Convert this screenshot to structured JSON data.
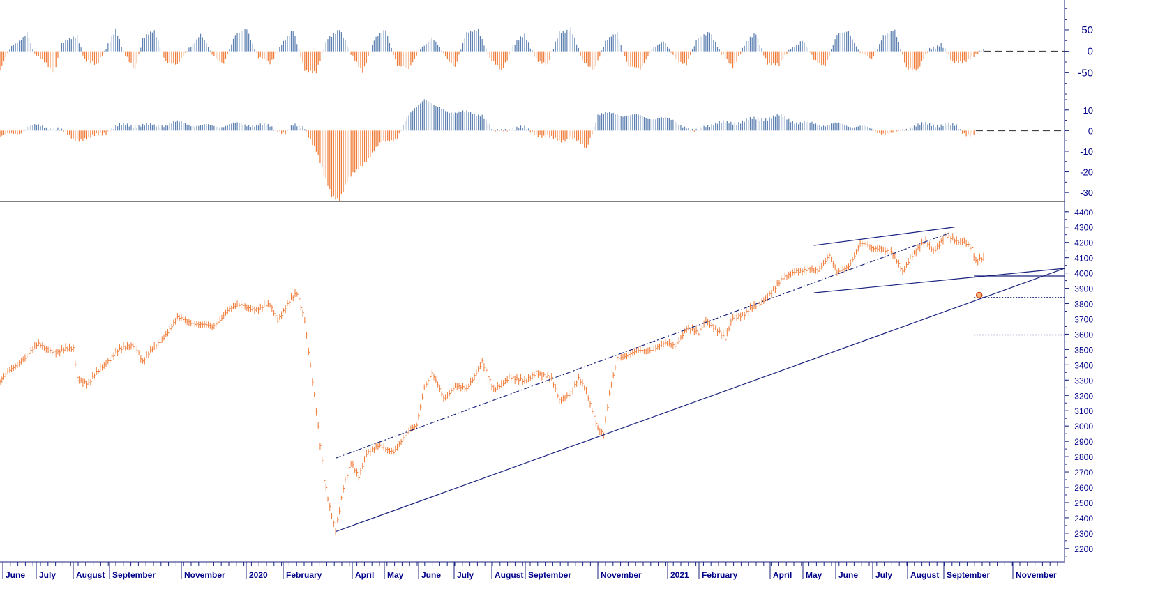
{
  "colors": {
    "up": "#5b7fb0",
    "down": "#f07a36",
    "line": "#1a237e",
    "axis": "#1a237e",
    "label": "#00008b",
    "panel_divider": "#000000",
    "marker_fill": "#f5b27a",
    "marker_stroke": "#d04010"
  },
  "chart_data": [
    {
      "type": "bar",
      "panel": "oscillator-top",
      "ylim": [
        -100,
        120
      ],
      "ticks": [
        50,
        0,
        -50
      ],
      "tick_labels": [
        "50",
        "0",
        "-50"
      ],
      "baseline": 0,
      "anchors": [
        [
          0,
          -45
        ],
        [
          6,
          10
        ],
        [
          14,
          45
        ],
        [
          18,
          -10
        ],
        [
          24,
          -25
        ],
        [
          28,
          -50
        ],
        [
          32,
          15
        ],
        [
          40,
          40
        ],
        [
          44,
          -20
        ],
        [
          50,
          -35
        ],
        [
          56,
          20
        ],
        [
          60,
          50
        ],
        [
          64,
          -5
        ],
        [
          70,
          -40
        ],
        [
          74,
          30
        ],
        [
          80,
          45
        ],
        [
          86,
          -20
        ],
        [
          92,
          -35
        ],
        [
          98,
          10
        ],
        [
          104,
          40
        ],
        [
          110,
          -10
        ],
        [
          116,
          -25
        ],
        [
          122,
          35
        ],
        [
          128,
          55
        ],
        [
          134,
          -15
        ],
        [
          140,
          -30
        ],
        [
          146,
          20
        ],
        [
          152,
          45
        ],
        [
          158,
          -40
        ],
        [
          164,
          -50
        ],
        [
          170,
          30
        ],
        [
          176,
          55
        ],
        [
          182,
          -10
        ],
        [
          188,
          -45
        ],
        [
          194,
          25
        ],
        [
          200,
          50
        ],
        [
          206,
          -30
        ],
        [
          212,
          -45
        ],
        [
          218,
          10
        ],
        [
          224,
          30
        ],
        [
          230,
          -5
        ],
        [
          236,
          -35
        ],
        [
          242,
          40
        ],
        [
          248,
          55
        ],
        [
          254,
          -20
        ],
        [
          260,
          -45
        ],
        [
          266,
          15
        ],
        [
          272,
          35
        ],
        [
          278,
          -15
        ],
        [
          284,
          -35
        ],
        [
          290,
          45
        ],
        [
          296,
          55
        ],
        [
          302,
          -25
        ],
        [
          308,
          -40
        ],
        [
          314,
          20
        ],
        [
          320,
          45
        ],
        [
          326,
          -35
        ],
        [
          332,
          -45
        ],
        [
          338,
          10
        ],
        [
          344,
          20
        ],
        [
          350,
          -15
        ],
        [
          356,
          -30
        ],
        [
          362,
          30
        ],
        [
          368,
          50
        ],
        [
          374,
          -10
        ],
        [
          380,
          -35
        ],
        [
          386,
          15
        ],
        [
          392,
          40
        ],
        [
          398,
          -25
        ],
        [
          404,
          -35
        ],
        [
          410,
          10
        ],
        [
          416,
          25
        ],
        [
          422,
          -20
        ],
        [
          428,
          -30
        ],
        [
          434,
          35
        ],
        [
          440,
          50
        ],
        [
          446,
          -5
        ],
        [
          452,
          -20
        ],
        [
          458,
          40
        ],
        [
          464,
          45
        ],
        [
          470,
          -35
        ],
        [
          476,
          -45
        ],
        [
          482,
          5
        ],
        [
          488,
          20
        ],
        [
          494,
          -30
        ],
        [
          500,
          -20
        ],
        [
          506,
          -10
        ],
        [
          510,
          0
        ]
      ]
    },
    {
      "type": "bar",
      "panel": "oscillator-middle",
      "ylim": [
        -33,
        16
      ],
      "ticks": [
        10,
        0,
        -10,
        -20,
        -30
      ],
      "tick_labels": [
        "10",
        "0",
        "-10",
        "-20",
        "-30"
      ],
      "baseline": 0,
      "anchors": [
        [
          0,
          -3
        ],
        [
          10,
          -1
        ],
        [
          14,
          2
        ],
        [
          22,
          2
        ],
        [
          30,
          1
        ],
        [
          38,
          -4
        ],
        [
          46,
          -4
        ],
        [
          54,
          -1
        ],
        [
          60,
          2
        ],
        [
          72,
          3
        ],
        [
          80,
          2
        ],
        [
          90,
          4
        ],
        [
          100,
          3
        ],
        [
          110,
          2
        ],
        [
          120,
          3
        ],
        [
          130,
          3
        ],
        [
          140,
          2
        ],
        [
          148,
          -1
        ],
        [
          152,
          2
        ],
        [
          158,
          2
        ],
        [
          164,
          -10
        ],
        [
          168,
          -22
        ],
        [
          172,
          -31
        ],
        [
          176,
          -33
        ],
        [
          180,
          -25
        ],
        [
          186,
          -18
        ],
        [
          192,
          -12
        ],
        [
          198,
          -6
        ],
        [
          206,
          -3
        ],
        [
          210,
          4
        ],
        [
          216,
          12
        ],
        [
          220,
          16
        ],
        [
          226,
          11
        ],
        [
          236,
          9
        ],
        [
          250,
          8
        ],
        [
          256,
          -1
        ],
        [
          262,
          1
        ],
        [
          272,
          1
        ],
        [
          282,
          -3
        ],
        [
          290,
          -5
        ],
        [
          296,
          -3
        ],
        [
          304,
          -9
        ],
        [
          310,
          8
        ],
        [
          320,
          8
        ],
        [
          330,
          7
        ],
        [
          340,
          6
        ],
        [
          350,
          5
        ],
        [
          360,
          -1
        ],
        [
          366,
          3
        ],
        [
          380,
          4
        ],
        [
          396,
          6
        ],
        [
          404,
          7
        ],
        [
          414,
          4
        ],
        [
          424,
          3
        ],
        [
          436,
          3
        ],
        [
          446,
          2
        ],
        [
          454,
          0
        ],
        [
          462,
          -2
        ],
        [
          472,
          2
        ],
        [
          480,
          3
        ],
        [
          490,
          3
        ],
        [
          496,
          2
        ],
        [
          500,
          -1
        ],
        [
          504,
          -2
        ],
        [
          506,
          -1
        ]
      ]
    },
    {
      "type": "line",
      "panel": "price",
      "ylim": [
        2140,
        4440
      ],
      "ticks": [
        4400,
        4300,
        4200,
        4100,
        4000,
        3900,
        3800,
        3700,
        3600,
        3500,
        3400,
        3300,
        3200,
        3100,
        3000,
        2900,
        2800,
        2700,
        2600,
        2500,
        2400,
        2300,
        2200
      ],
      "tick_labels": [
        "4400",
        "4300",
        "4200",
        "4100",
        "4000",
        "3900",
        "3800",
        "3700",
        "3600",
        "3500",
        "3400",
        "3300",
        "3200",
        "3100",
        "3000",
        "2900",
        "2800",
        "2700",
        "2600",
        "2500",
        "2400",
        "2300",
        "2200"
      ],
      "anchors": [
        [
          0,
          3290
        ],
        [
          10,
          3420
        ],
        [
          20,
          3530
        ],
        [
          30,
          3480
        ],
        [
          38,
          3510
        ],
        [
          40,
          3320
        ],
        [
          46,
          3270
        ],
        [
          52,
          3380
        ],
        [
          60,
          3480
        ],
        [
          70,
          3540
        ],
        [
          74,
          3420
        ],
        [
          80,
          3510
        ],
        [
          92,
          3700
        ],
        [
          100,
          3680
        ],
        [
          110,
          3640
        ],
        [
          118,
          3760
        ],
        [
          126,
          3790
        ],
        [
          134,
          3760
        ],
        [
          140,
          3790
        ],
        [
          144,
          3700
        ],
        [
          150,
          3810
        ],
        [
          154,
          3860
        ],
        [
          158,
          3700
        ],
        [
          160,
          3500
        ],
        [
          164,
          3100
        ],
        [
          168,
          2640
        ],
        [
          171,
          2470
        ],
        [
          174,
          2320
        ],
        [
          178,
          2600
        ],
        [
          182,
          2750
        ],
        [
          186,
          2670
        ],
        [
          190,
          2830
        ],
        [
          196,
          2860
        ],
        [
          204,
          2840
        ],
        [
          210,
          2930
        ],
        [
          216,
          3010
        ],
        [
          220,
          3260
        ],
        [
          224,
          3340
        ],
        [
          230,
          3180
        ],
        [
          236,
          3270
        ],
        [
          242,
          3230
        ],
        [
          250,
          3430
        ],
        [
          256,
          3220
        ],
        [
          264,
          3330
        ],
        [
          272,
          3280
        ],
        [
          278,
          3360
        ],
        [
          286,
          3300
        ],
        [
          290,
          3170
        ],
        [
          296,
          3220
        ],
        [
          300,
          3300
        ],
        [
          304,
          3230
        ],
        [
          310,
          2990
        ],
        [
          313,
          2940
        ],
        [
          316,
          3200
        ],
        [
          320,
          3450
        ],
        [
          330,
          3480
        ],
        [
          336,
          3500
        ],
        [
          344,
          3530
        ],
        [
          350,
          3530
        ],
        [
          356,
          3640
        ],
        [
          362,
          3600
        ],
        [
          366,
          3700
        ],
        [
          370,
          3650
        ],
        [
          376,
          3560
        ],
        [
          380,
          3720
        ],
        [
          386,
          3730
        ],
        [
          392,
          3780
        ],
        [
          396,
          3830
        ],
        [
          402,
          3900
        ],
        [
          406,
          3960
        ],
        [
          412,
          4020
        ],
        [
          418,
          4010
        ],
        [
          424,
          4020
        ],
        [
          430,
          4120
        ],
        [
          434,
          3990
        ],
        [
          440,
          4050
        ],
        [
          446,
          4190
        ],
        [
          452,
          4160
        ],
        [
          456,
          4170
        ],
        [
          462,
          4130
        ],
        [
          468,
          4010
        ],
        [
          472,
          4110
        ],
        [
          480,
          4200
        ],
        [
          484,
          4150
        ],
        [
          490,
          4240
        ],
        [
          496,
          4200
        ],
        [
          500,
          4220
        ],
        [
          504,
          4160
        ],
        [
          506,
          4070
        ],
        [
          510,
          4090
        ]
      ]
    }
  ],
  "x_axis": {
    "labels": [
      "June",
      "July",
      "August",
      "September",
      "November",
      "2020",
      "February",
      "April",
      "May",
      "June",
      "July",
      "August",
      "September",
      "November",
      "2021",
      "February",
      "April",
      "May",
      "June",
      "July",
      "August",
      "September",
      "November"
    ]
  }
}
